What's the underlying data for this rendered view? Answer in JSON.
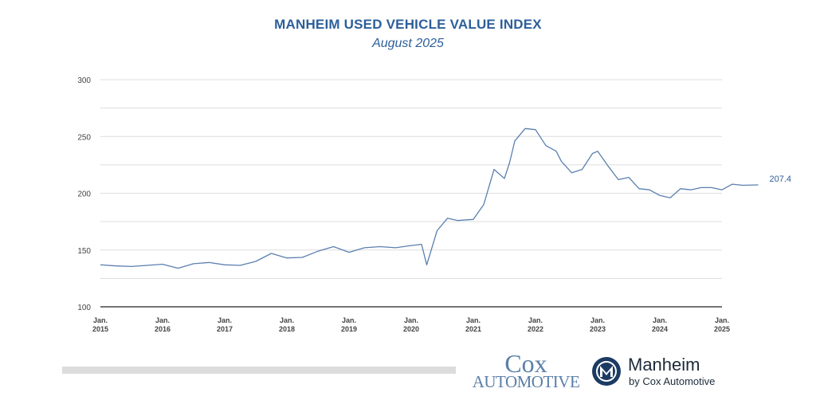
{
  "chart_data": {
    "type": "line",
    "title": "MANHEIM USED VEHICLE VALUE INDEX",
    "subtitle": "August 2025",
    "xlabel": "",
    "ylabel": "",
    "ylim": [
      100,
      300
    ],
    "yticks": [
      "100",
      "150",
      "200",
      "250",
      "300"
    ],
    "x_tick_labels": [
      [
        "Jan.",
        "2015"
      ],
      [
        "Jan.",
        "2016"
      ],
      [
        "Jan.",
        "2017"
      ],
      [
        "Jan.",
        "2018"
      ],
      [
        "Jan.",
        "2019"
      ],
      [
        "Jan.",
        "2020"
      ],
      [
        "Jan.",
        "2021"
      ],
      [
        "Jan.",
        "2022"
      ],
      [
        "Jan.",
        "2023"
      ],
      [
        "Jan.",
        "2024"
      ],
      [
        "Jan.",
        "2025"
      ]
    ],
    "grid": true,
    "legend": "none",
    "line_color": "#5b7fb0",
    "end_label": "207.4",
    "series": [
      {
        "points": [
          [
            "2015-01",
            137
          ],
          [
            "2015-04",
            136
          ],
          [
            "2015-07",
            135.5
          ],
          [
            "2015-10",
            136.5
          ],
          [
            "2016-01",
            137.5
          ],
          [
            "2016-04",
            134
          ],
          [
            "2016-07",
            138
          ],
          [
            "2016-10",
            139
          ],
          [
            "2017-01",
            137
          ],
          [
            "2017-04",
            136.5
          ],
          [
            "2017-07",
            140
          ],
          [
            "2017-10",
            147
          ],
          [
            "2018-01",
            143
          ],
          [
            "2018-04",
            143.5
          ],
          [
            "2018-07",
            149
          ],
          [
            "2018-10",
            153
          ],
          [
            "2019-01",
            148
          ],
          [
            "2019-04",
            152
          ],
          [
            "2019-07",
            153
          ],
          [
            "2019-10",
            152
          ],
          [
            "2020-01",
            154
          ],
          [
            "2020-03",
            155
          ],
          [
            "2020-04",
            137
          ],
          [
            "2020-06",
            167
          ],
          [
            "2020-08",
            178
          ],
          [
            "2020-10",
            176
          ],
          [
            "2021-01",
            177
          ],
          [
            "2021-03",
            190
          ],
          [
            "2021-05",
            221
          ],
          [
            "2021-07",
            213
          ],
          [
            "2021-08",
            227
          ],
          [
            "2021-09",
            246
          ],
          [
            "2021-11",
            257
          ],
          [
            "2022-01",
            256
          ],
          [
            "2022-03",
            242
          ],
          [
            "2022-05",
            237
          ],
          [
            "2022-06",
            228
          ],
          [
            "2022-08",
            218
          ],
          [
            "2022-10",
            221
          ],
          [
            "2022-12",
            235
          ],
          [
            "2023-01",
            237
          ],
          [
            "2023-03",
            224
          ],
          [
            "2023-05",
            212
          ],
          [
            "2023-07",
            214
          ],
          [
            "2023-09",
            204
          ],
          [
            "2023-11",
            203
          ],
          [
            "2024-01",
            198
          ],
          [
            "2024-03",
            196
          ],
          [
            "2024-05",
            204
          ],
          [
            "2024-07",
            203
          ],
          [
            "2024-09",
            205
          ],
          [
            "2024-11",
            205
          ],
          [
            "2025-01",
            203
          ],
          [
            "2025-03",
            208
          ],
          [
            "2025-05",
            207
          ],
          [
            "2025-08",
            207.4
          ]
        ]
      }
    ]
  },
  "logos": {
    "cox_line1": "Cox",
    "cox_line2": "AUTOMOTIVE",
    "manheim_name": "Manheim",
    "manheim_sub": "by Cox Automotive"
  }
}
